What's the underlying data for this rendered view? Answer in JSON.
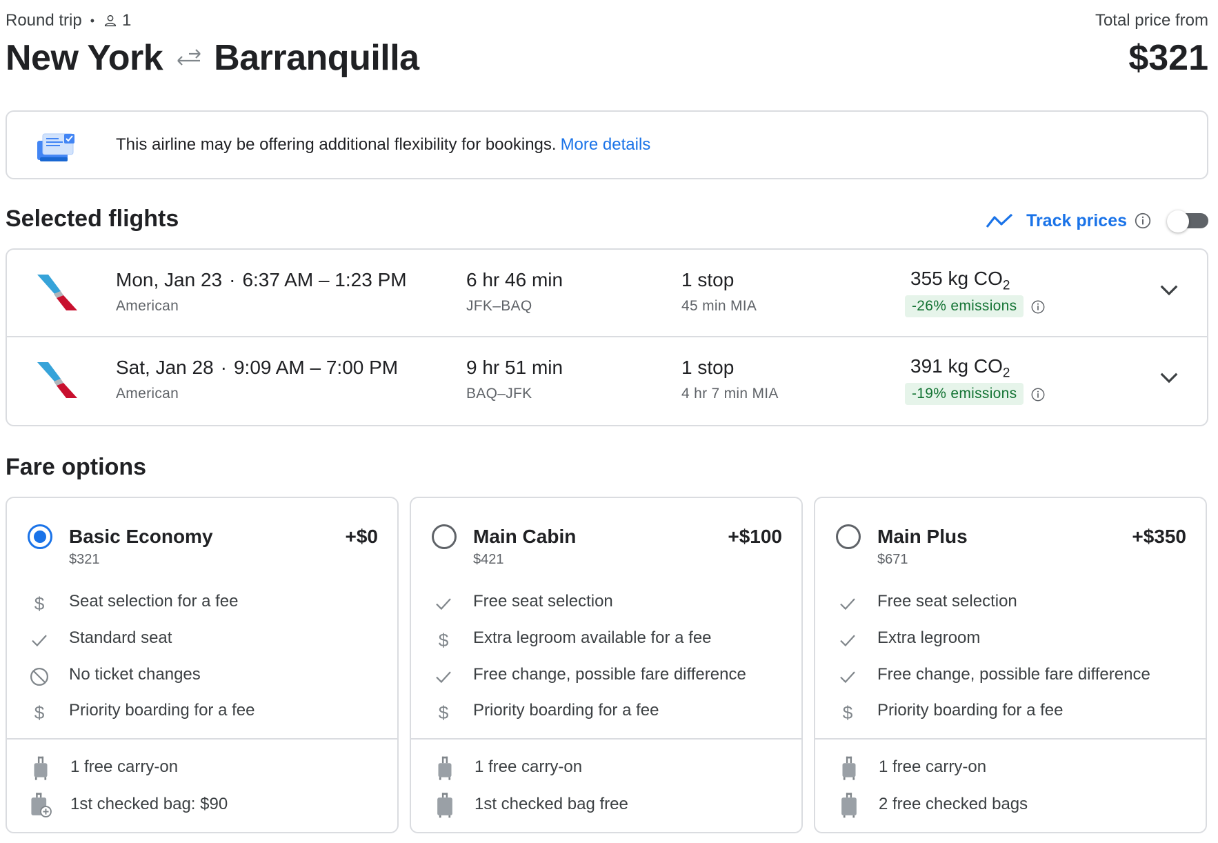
{
  "header": {
    "trip_type": "Round trip",
    "passengers": "1",
    "origin": "New York",
    "destination": "Barranquilla",
    "total_label": "Total price from",
    "total_price": "$321"
  },
  "banner": {
    "text": "This airline may be offering additional flexibility for bookings.",
    "link": "More details"
  },
  "selected_flights": {
    "title": "Selected flights",
    "track_label": "Track prices",
    "track_enabled": false,
    "flights": [
      {
        "date": "Mon, Jan 23",
        "times": "6:37 AM – 1:23 PM",
        "airline": "American",
        "duration": "6 hr 46 min",
        "route": "JFK–BAQ",
        "stops": "1 stop",
        "layover": "45 min MIA",
        "co2": "355 kg CO",
        "co2_sub": "2",
        "emissions": "-26% emissions"
      },
      {
        "date": "Sat, Jan 28",
        "times": "9:09 AM – 7:00 PM",
        "airline": "American",
        "duration": "9 hr 51 min",
        "route": "BAQ–JFK",
        "stops": "1 stop",
        "layover": "4 hr 7 min MIA",
        "co2": "391 kg CO",
        "co2_sub": "2",
        "emissions": "-19% emissions"
      }
    ]
  },
  "fare_options": {
    "title": "Fare options",
    "fares": [
      {
        "name": "Basic Economy",
        "price": "$321",
        "add": "+$0",
        "selected": true,
        "features": [
          {
            "icon": "dollar-icon",
            "text": "Seat selection for a fee"
          },
          {
            "icon": "check-icon",
            "text": "Standard seat"
          },
          {
            "icon": "no-icon",
            "text": "No ticket changes"
          },
          {
            "icon": "dollar-icon",
            "text": "Priority boarding for a fee"
          }
        ],
        "bags": [
          {
            "icon": "carry-on-icon",
            "text": "1 free carry-on"
          },
          {
            "icon": "checked-bag-fee-icon",
            "text": "1st checked bag: $90"
          }
        ]
      },
      {
        "name": "Main Cabin",
        "price": "$421",
        "add": "+$100",
        "selected": false,
        "features": [
          {
            "icon": "check-icon",
            "text": "Free seat selection"
          },
          {
            "icon": "dollar-icon",
            "text": "Extra legroom available for a fee"
          },
          {
            "icon": "check-icon",
            "text": "Free change, possible fare difference"
          },
          {
            "icon": "dollar-icon",
            "text": "Priority boarding for a fee"
          }
        ],
        "bags": [
          {
            "icon": "carry-on-icon",
            "text": "1 free carry-on"
          },
          {
            "icon": "checked-bag-icon",
            "text": "1st checked bag free"
          }
        ]
      },
      {
        "name": "Main Plus",
        "price": "$671",
        "add": "+$350",
        "selected": false,
        "features": [
          {
            "icon": "check-icon",
            "text": "Free seat selection"
          },
          {
            "icon": "check-icon",
            "text": "Extra legroom"
          },
          {
            "icon": "check-icon",
            "text": "Free change, possible fare difference"
          },
          {
            "icon": "dollar-icon",
            "text": "Priority boarding for a fee"
          }
        ],
        "bags": [
          {
            "icon": "carry-on-icon",
            "text": "1 free carry-on"
          },
          {
            "icon": "checked-bag-icon",
            "text": "2 free checked bags"
          }
        ]
      }
    ]
  },
  "colors": {
    "accent": "#1a73e8",
    "text": "#202124",
    "secondary_text": "#5f6368",
    "border": "#dadce0",
    "emissions_bg": "#e6f4ea",
    "emissions_text": "#137333",
    "airline_red": "#c8102e",
    "airline_blue": "#36a3d9"
  }
}
